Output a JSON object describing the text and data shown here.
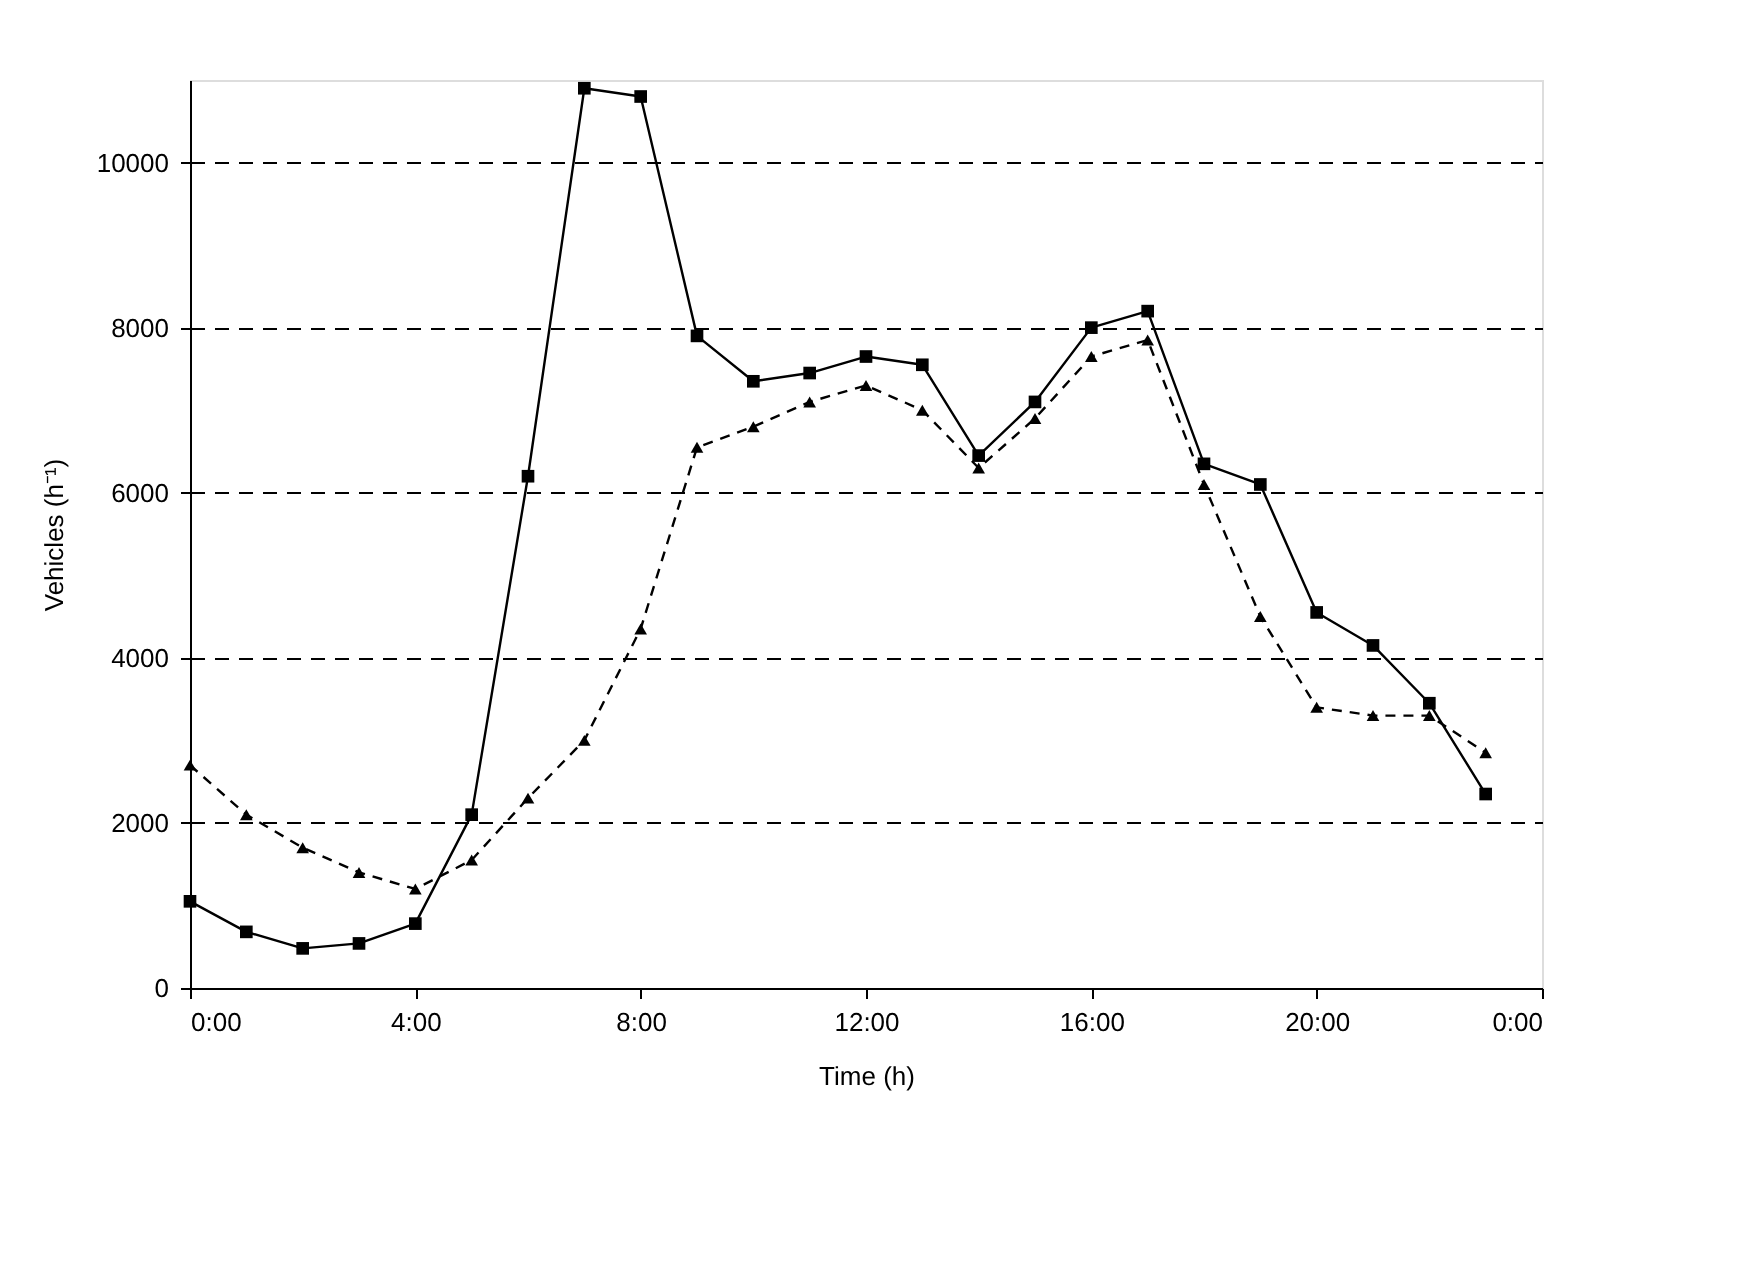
{
  "chart_data": {
    "type": "line",
    "xlabel": "Time (h)",
    "ylabel": "Vehicles (h⁻¹)",
    "x": [
      0,
      1,
      2,
      3,
      4,
      5,
      6,
      7,
      8,
      9,
      10,
      11,
      12,
      13,
      14,
      15,
      16,
      17,
      18,
      19,
      20,
      21,
      22,
      23
    ],
    "series": [
      {
        "color": "#000000",
        "marker": "square",
        "line_style": "solid",
        "values": [
          1050,
          680,
          480,
          540,
          780,
          2100,
          6200,
          10900,
          10800,
          7900,
          7350,
          7450,
          7650,
          7550,
          6450,
          7100,
          8000,
          8200,
          6350,
          6100,
          4550,
          4150,
          3450,
          2350
        ]
      },
      {
        "color": "#000000",
        "marker": "triangle",
        "line_style": "dashed",
        "values": [
          2700,
          2100,
          1700,
          1400,
          1200,
          1550,
          2300,
          3000,
          4350,
          6550,
          6800,
          7100,
          7300,
          7000,
          6300,
          6900,
          7650,
          7850,
          6100,
          4500,
          3400,
          3300,
          3300,
          2850
        ]
      }
    ],
    "xlim": [
      0,
      24
    ],
    "xticks": [
      {
        "value": 0,
        "label": "0:00"
      },
      {
        "value": 4,
        "label": "4:00"
      },
      {
        "value": 8,
        "label": "8:00"
      },
      {
        "value": 12,
        "label": "12:00"
      },
      {
        "value": 16,
        "label": "16:00"
      },
      {
        "value": 20,
        "label": "20:00"
      },
      {
        "value": 24,
        "label": "0:00"
      }
    ],
    "ylim": [
      0,
      11000
    ],
    "yticks": [
      0,
      2000,
      4000,
      6000,
      8000,
      10000
    ],
    "grid": "y"
  }
}
